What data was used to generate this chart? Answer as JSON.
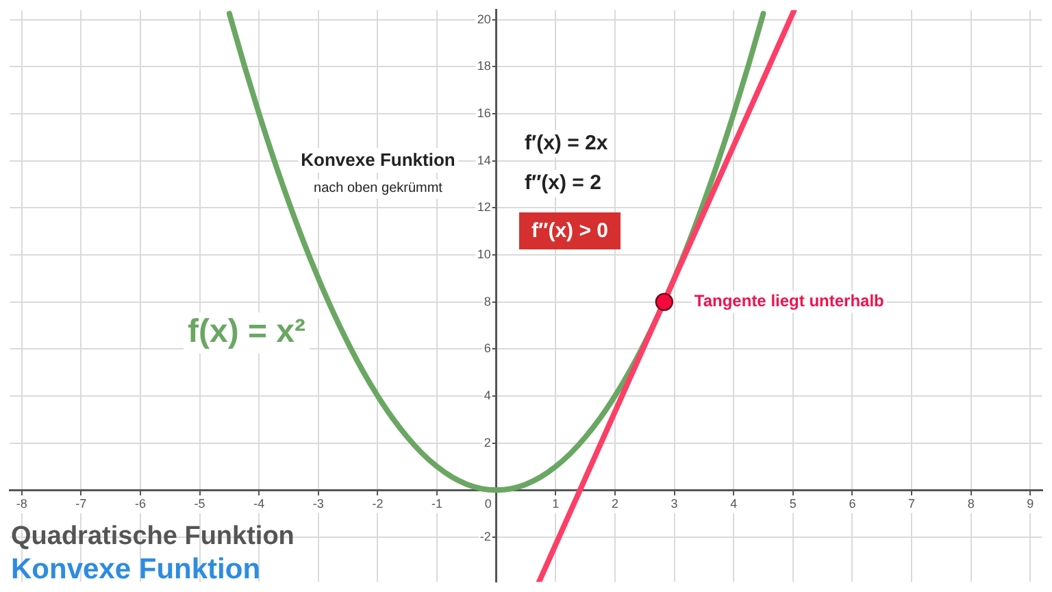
{
  "chart_data": {
    "type": "line",
    "title": "Quadratische Funktion",
    "subtitle": "Konvexe Funktion",
    "annotations": [
      "Konvexe Funktion",
      "nach oben gekrümmt",
      "f′(x) = 2x",
      "f″(x) = 2",
      "f″(x) > 0",
      {
        "text": "Tangente liegt unterhalb",
        "x": 2.83,
        "y": 8
      }
    ],
    "xlim": [
      -8.2,
      9.2
    ],
    "xticks": [
      -8,
      -7,
      -6,
      -5,
      -4,
      -3,
      -2,
      -1,
      0,
      1,
      2,
      3,
      4,
      5,
      6,
      7,
      8,
      9
    ],
    "ylim": [
      -3.9,
      20.4
    ],
    "yticks": [
      -2,
      2,
      4,
      6,
      8,
      10,
      12,
      14,
      16,
      18,
      20
    ],
    "grid": true,
    "series": [
      {
        "name": "f(x) = x²",
        "color": "#6aa763",
        "x": [
          -4.5,
          -4.25,
          -4,
          -3.75,
          -3.5,
          -3.25,
          -3,
          -2.75,
          -2.5,
          -2.25,
          -2,
          -1.75,
          -1.5,
          -1.25,
          -1,
          -0.75,
          -0.5,
          -0.25,
          0,
          0.25,
          0.5,
          0.75,
          1,
          1.25,
          1.5,
          1.75,
          2,
          2.25,
          2.5,
          2.75,
          3,
          3.25,
          3.5,
          3.75,
          4,
          4.25,
          4.5
        ],
        "values": [
          20.25,
          18.06,
          16,
          14.06,
          12.25,
          10.56,
          9,
          7.56,
          6.25,
          5.06,
          4,
          3.06,
          2.25,
          1.56,
          1,
          0.56,
          0.25,
          0.06,
          0,
          0.06,
          0.25,
          0.56,
          1,
          1.56,
          2.25,
          3.06,
          4,
          5.06,
          6.25,
          7.56,
          9,
          10.56,
          12.25,
          14.06,
          16,
          18.06,
          20.25
        ]
      },
      {
        "color": "#fc3f66",
        "x": [
          0.72,
          5.02
        ],
        "values": [
          -3.9,
          20.4
        ]
      },
      {
        "type": "scatter",
        "color": "#f5083b",
        "marker": "circle",
        "x": [
          2.83
        ],
        "values": [
          8
        ]
      }
    ]
  }
}
